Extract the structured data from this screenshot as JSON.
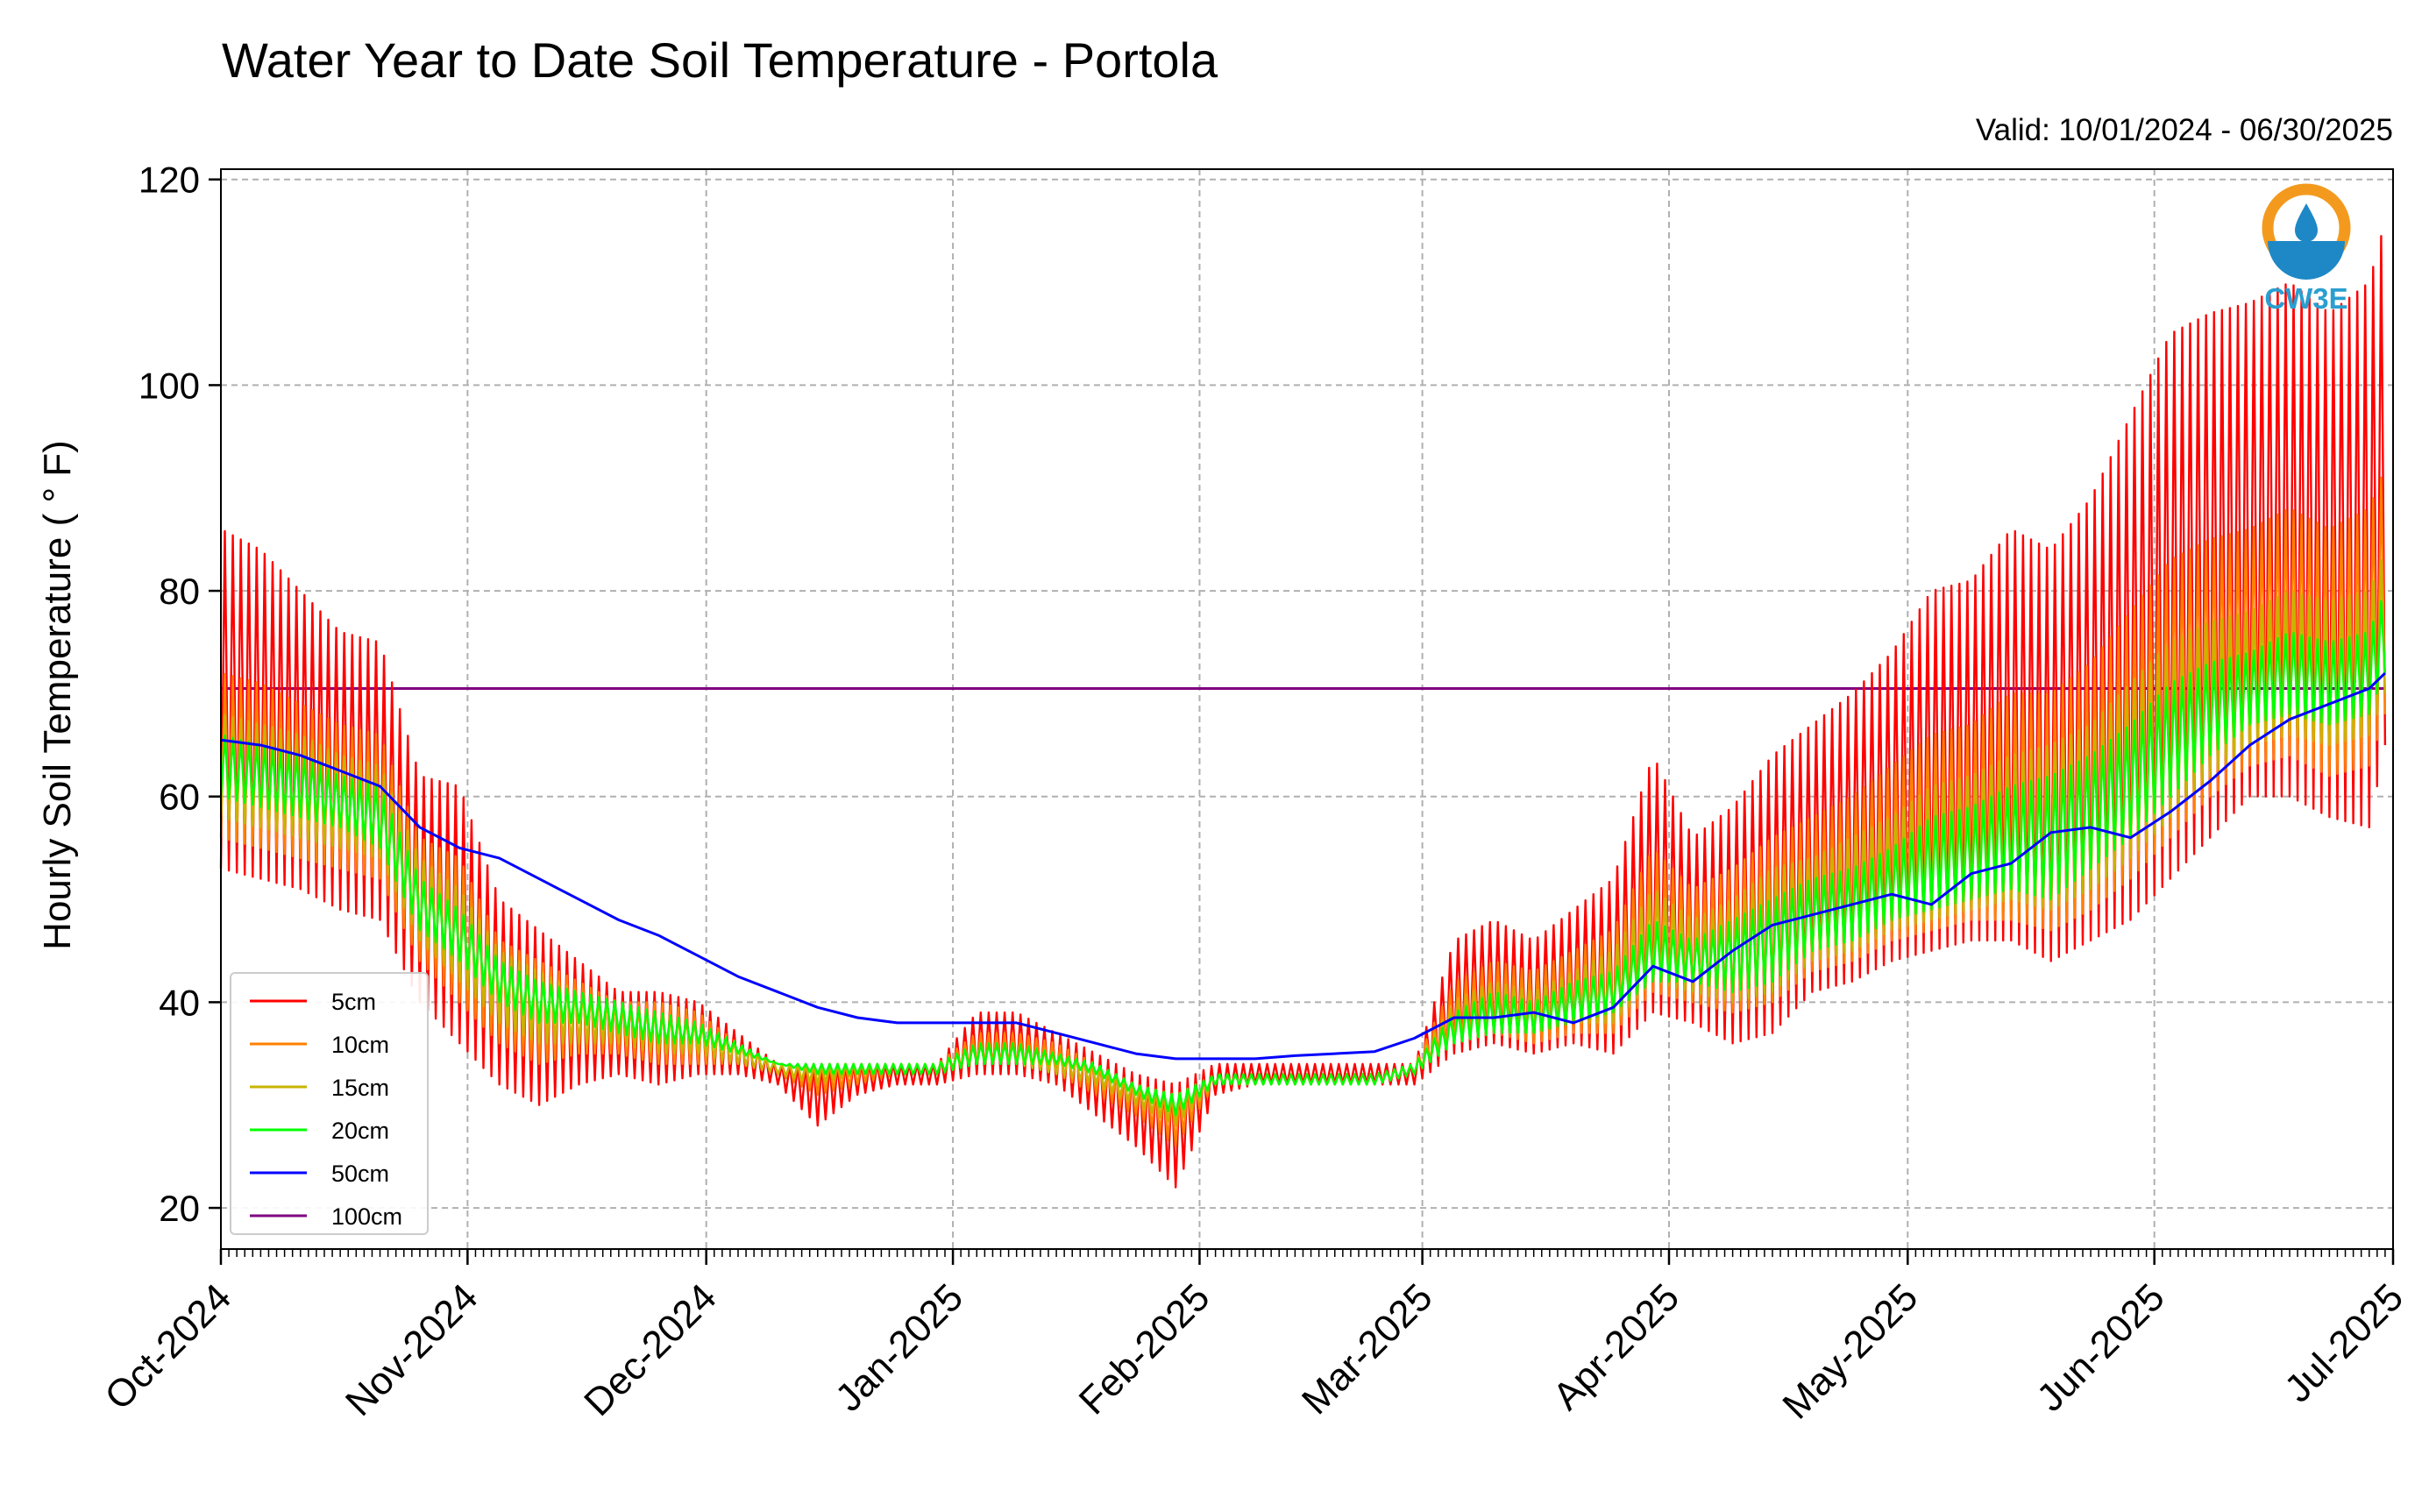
{
  "chart_data": {
    "type": "line",
    "title": "Water Year to Date Soil Temperature - Portola",
    "subtitle": "Valid: 10/01/2024 - 06/30/2025",
    "xlabel": "",
    "ylabel": "Hourly Soil Temperature ( ° F)",
    "xlim": [
      "2024-10-01",
      "2025-07-01"
    ],
    "ylim": [
      16,
      121
    ],
    "yticks": [
      20,
      40,
      60,
      80,
      100,
      120
    ],
    "xtick_labels": [
      "Oct-2024",
      "Nov-2024",
      "Dec-2024",
      "Jan-2025",
      "Feb-2025",
      "Mar-2025",
      "Apr-2025",
      "May-2025",
      "Jun-2025",
      "Jul-2025"
    ],
    "xtick_dates": [
      "2024-10-01",
      "2024-11-01",
      "2024-12-01",
      "2025-01-01",
      "2025-02-01",
      "2025-03-01",
      "2025-04-01",
      "2025-05-01",
      "2025-06-01",
      "2025-07-01"
    ],
    "grid": true,
    "legend_position": "lower-left",
    "series": [
      {
        "name": "5cm",
        "color": "#ff0000",
        "x": [
          "2024-10-01",
          "2024-10-06",
          "2024-10-11",
          "2024-10-16",
          "2024-10-21",
          "2024-10-26",
          "2024-10-31",
          "2024-11-05",
          "2024-11-10",
          "2024-11-15",
          "2024-11-20",
          "2024-11-25",
          "2024-11-30",
          "2024-12-05",
          "2024-12-10",
          "2024-12-15",
          "2024-12-20",
          "2024-12-25",
          "2024-12-30",
          "2025-01-04",
          "2025-01-09",
          "2025-01-14",
          "2025-01-19",
          "2025-01-24",
          "2025-01-29",
          "2025-02-03",
          "2025-02-08",
          "2025-02-13",
          "2025-02-18",
          "2025-02-23",
          "2025-02-28",
          "2025-03-05",
          "2025-03-10",
          "2025-03-15",
          "2025-03-20",
          "2025-03-25",
          "2025-03-30",
          "2025-04-04",
          "2025-04-09",
          "2025-04-14",
          "2025-04-19",
          "2025-04-24",
          "2025-04-29",
          "2025-05-04",
          "2025-05-09",
          "2025-05-14",
          "2025-05-19",
          "2025-05-24",
          "2025-05-29",
          "2025-06-03",
          "2025-06-08",
          "2025-06-13",
          "2025-06-18",
          "2025-06-23",
          "2025-06-28",
          "2025-06-30"
        ],
        "min": [
          53,
          52,
          51,
          49,
          48,
          40,
          36,
          32,
          30,
          32,
          33,
          32,
          33,
          33,
          32,
          28,
          31,
          32,
          32,
          33,
          33,
          32,
          29,
          26,
          22,
          31,
          32,
          32,
          32,
          32,
          32,
          35,
          36,
          35,
          36,
          35,
          39,
          38,
          36,
          37,
          41,
          42,
          44,
          45,
          46,
          46,
          44,
          46,
          48,
          52,
          56,
          60,
          60,
          58,
          57,
          65
        ],
        "max": [
          86,
          84,
          80,
          76,
          75,
          62,
          61,
          50,
          47,
          44,
          41,
          41,
          40,
          37,
          34,
          34,
          34,
          34,
          34,
          39,
          39,
          37,
          35,
          33,
          32,
          34,
          34,
          34,
          34,
          34,
          34,
          46,
          48,
          46,
          49,
          52,
          64,
          56,
          59,
          64,
          67,
          70,
          74,
          80,
          81,
          86,
          84,
          89,
          97,
          105,
          107,
          108,
          110,
          107,
          110,
          116
        ]
      },
      {
        "name": "10cm",
        "color": "#ff8000",
        "x": [
          "2024-10-01",
          "2024-10-06",
          "2024-10-11",
          "2024-10-16",
          "2024-10-21",
          "2024-10-26",
          "2024-10-31",
          "2024-11-05",
          "2024-11-10",
          "2024-11-15",
          "2024-11-20",
          "2024-11-25",
          "2024-11-30",
          "2024-12-05",
          "2024-12-10",
          "2024-12-15",
          "2024-12-20",
          "2024-12-25",
          "2024-12-30",
          "2025-01-04",
          "2025-01-09",
          "2025-01-14",
          "2025-01-19",
          "2025-01-24",
          "2025-01-29",
          "2025-02-03",
          "2025-02-08",
          "2025-02-13",
          "2025-02-18",
          "2025-02-23",
          "2025-02-28",
          "2025-03-05",
          "2025-03-10",
          "2025-03-15",
          "2025-03-20",
          "2025-03-25",
          "2025-03-30",
          "2025-04-04",
          "2025-04-09",
          "2025-04-14",
          "2025-04-19",
          "2025-04-24",
          "2025-04-29",
          "2025-05-04",
          "2025-05-09",
          "2025-05-14",
          "2025-05-19",
          "2025-05-24",
          "2025-05-29",
          "2025-06-03",
          "2025-06-08",
          "2025-06-13",
          "2025-06-18",
          "2025-06-23",
          "2025-06-28",
          "2025-06-30"
        ],
        "min": [
          56,
          55,
          54,
          53,
          52,
          44,
          40,
          36,
          34,
          35,
          35,
          34,
          34,
          34,
          33,
          31,
          32,
          33,
          33,
          34,
          34,
          33,
          31,
          29,
          26,
          32,
          32,
          32,
          32,
          32,
          33,
          36,
          37,
          36,
          37,
          37,
          41,
          40,
          39,
          40,
          43,
          44,
          46,
          47,
          48,
          48,
          47,
          49,
          52,
          56,
          60,
          63,
          64,
          62,
          63,
          68
        ],
        "max": [
          72,
          71,
          69,
          67,
          66,
          56,
          54,
          46,
          44,
          42,
          40,
          40,
          39,
          36,
          34,
          34,
          34,
          34,
          34,
          37,
          37,
          36,
          34,
          32,
          31,
          33,
          33,
          33,
          33,
          33,
          34,
          42,
          44,
          43,
          45,
          47,
          55,
          51,
          53,
          56,
          58,
          60,
          63,
          66,
          67,
          70,
          70,
          73,
          78,
          83,
          85,
          86,
          88,
          86,
          88,
          92
        ]
      },
      {
        "name": "15cm",
        "color": "#c8b400",
        "x": [
          "2024-10-01",
          "2024-10-06",
          "2024-10-11",
          "2024-10-16",
          "2024-10-21",
          "2024-10-26",
          "2024-10-31",
          "2024-11-05",
          "2024-11-10",
          "2024-11-15",
          "2024-11-20",
          "2024-11-25",
          "2024-11-30",
          "2024-12-05",
          "2024-12-10",
          "2024-12-15",
          "2024-12-20",
          "2024-12-25",
          "2024-12-30",
          "2025-01-04",
          "2025-01-09",
          "2025-01-14",
          "2025-01-19",
          "2025-01-24",
          "2025-01-29",
          "2025-02-03",
          "2025-02-08",
          "2025-02-13",
          "2025-02-18",
          "2025-02-23",
          "2025-02-28",
          "2025-03-05",
          "2025-03-10",
          "2025-03-15",
          "2025-03-20",
          "2025-03-25",
          "2025-03-30",
          "2025-04-04",
          "2025-04-09",
          "2025-04-14",
          "2025-04-19",
          "2025-04-24",
          "2025-04-29",
          "2025-05-04",
          "2025-05-09",
          "2025-05-14",
          "2025-05-19",
          "2025-05-24",
          "2025-05-29",
          "2025-06-03",
          "2025-06-08",
          "2025-06-13",
          "2025-06-18",
          "2025-06-23",
          "2025-06-28",
          "2025-06-30"
        ],
        "min": [
          58,
          57,
          56,
          55,
          54,
          46,
          42,
          38,
          36,
          36,
          36,
          35,
          35,
          34,
          33,
          32,
          33,
          33,
          33,
          34,
          34,
          33,
          32,
          30,
          28,
          32,
          32,
          32,
          32,
          32,
          33,
          36,
          37,
          37,
          38,
          38,
          42,
          41,
          40,
          41,
          44,
          45,
          47,
          48,
          49,
          50,
          49,
          51,
          54,
          58,
          62,
          65,
          66,
          65,
          66,
          70
        ],
        "max": [
          68,
          67,
          66,
          64,
          63,
          54,
          51,
          45,
          43,
          41,
          40,
          39,
          38,
          36,
          34,
          34,
          34,
          34,
          34,
          36,
          36,
          35,
          34,
          32,
          31,
          33,
          33,
          33,
          33,
          33,
          34,
          40,
          42,
          41,
          43,
          45,
          51,
          48,
          50,
          53,
          54,
          56,
          58,
          61,
          62,
          64,
          65,
          67,
          71,
          75,
          77,
          78,
          80,
          79,
          80,
          84
        ]
      },
      {
        "name": "20cm",
        "color": "#00ff00",
        "x": [
          "2024-10-01",
          "2024-10-06",
          "2024-10-11",
          "2024-10-16",
          "2024-10-21",
          "2024-10-26",
          "2024-10-31",
          "2024-11-05",
          "2024-11-10",
          "2024-11-15",
          "2024-11-20",
          "2024-11-25",
          "2024-11-30",
          "2024-12-05",
          "2024-12-10",
          "2024-12-15",
          "2024-12-20",
          "2024-12-25",
          "2024-12-30",
          "2025-01-04",
          "2025-01-09",
          "2025-01-14",
          "2025-01-19",
          "2025-01-24",
          "2025-01-29",
          "2025-02-03",
          "2025-02-08",
          "2025-02-13",
          "2025-02-18",
          "2025-02-23",
          "2025-02-28",
          "2025-03-05",
          "2025-03-10",
          "2025-03-15",
          "2025-03-20",
          "2025-03-25",
          "2025-03-30",
          "2025-04-04",
          "2025-04-09",
          "2025-04-14",
          "2025-04-19",
          "2025-04-24",
          "2025-04-29",
          "2025-05-04",
          "2025-05-09",
          "2025-05-14",
          "2025-05-19",
          "2025-05-24",
          "2025-05-29",
          "2025-06-03",
          "2025-06-08",
          "2025-06-13",
          "2025-06-18",
          "2025-06-23",
          "2025-06-28",
          "2025-06-30"
        ],
        "min": [
          60,
          59,
          58,
          57,
          55,
          47,
          44,
          40,
          38,
          38,
          37,
          36,
          36,
          35,
          34,
          33,
          33,
          33,
          33,
          34,
          34,
          34,
          33,
          31,
          29,
          32,
          32,
          32,
          32,
          32,
          33,
          36,
          37,
          37,
          38,
          39,
          42,
          42,
          41,
          42,
          45,
          46,
          48,
          49,
          50,
          51,
          50,
          53,
          56,
          60,
          64,
          67,
          68,
          67,
          68,
          72
        ],
        "max": [
          66,
          65,
          64,
          62,
          61,
          52,
          49,
          44,
          42,
          41,
          40,
          39,
          38,
          36,
          34,
          34,
          34,
          34,
          34,
          36,
          36,
          35,
          34,
          32,
          31,
          33,
          33,
          33,
          33,
          33,
          34,
          39,
          41,
          40,
          42,
          43,
          48,
          46,
          48,
          50,
          52,
          53,
          55,
          58,
          59,
          61,
          62,
          64,
          67,
          71,
          73,
          74,
          76,
          75,
          76,
          80
        ]
      },
      {
        "name": "50cm",
        "color": "#0000ff",
        "x": [
          "2024-10-01",
          "2024-10-06",
          "2024-10-11",
          "2024-10-16",
          "2024-10-21",
          "2024-10-26",
          "2024-10-31",
          "2024-11-05",
          "2024-11-10",
          "2024-11-15",
          "2024-11-20",
          "2024-11-25",
          "2024-11-30",
          "2024-12-05",
          "2024-12-10",
          "2024-12-15",
          "2024-12-20",
          "2024-12-25",
          "2024-12-30",
          "2025-01-04",
          "2025-01-09",
          "2025-01-14",
          "2025-01-19",
          "2025-01-24",
          "2025-01-29",
          "2025-02-03",
          "2025-02-08",
          "2025-02-13",
          "2025-02-18",
          "2025-02-23",
          "2025-02-28",
          "2025-03-05",
          "2025-03-10",
          "2025-03-15",
          "2025-03-20",
          "2025-03-25",
          "2025-03-30",
          "2025-04-04",
          "2025-04-09",
          "2025-04-14",
          "2025-04-19",
          "2025-04-24",
          "2025-04-29",
          "2025-05-04",
          "2025-05-09",
          "2025-05-14",
          "2025-05-19",
          "2025-05-24",
          "2025-05-29",
          "2025-06-03",
          "2025-06-08",
          "2025-06-13",
          "2025-06-18",
          "2025-06-23",
          "2025-06-28",
          "2025-06-30"
        ],
        "y": [
          65.5,
          65,
          64,
          62.5,
          61,
          57,
          55,
          54,
          52,
          50,
          48,
          46.5,
          44.5,
          42.5,
          41,
          39.5,
          38.5,
          38,
          38,
          38,
          38,
          37,
          36,
          35,
          34.5,
          34.5,
          34.5,
          34.8,
          35,
          35.2,
          36.5,
          38.5,
          38.5,
          39,
          38,
          39.5,
          43.5,
          42,
          45,
          47.5,
          48.5,
          49.5,
          50.5,
          49.5,
          52.5,
          53.5,
          56.5,
          57,
          56,
          58.5,
          61.5,
          65,
          67.5,
          69,
          70.5,
          72
        ]
      },
      {
        "name": "100cm",
        "color": "#800080",
        "x": [
          "2024-10-01",
          "2025-06-30"
        ],
        "y": [
          70.5,
          70.5
        ]
      }
    ]
  }
}
